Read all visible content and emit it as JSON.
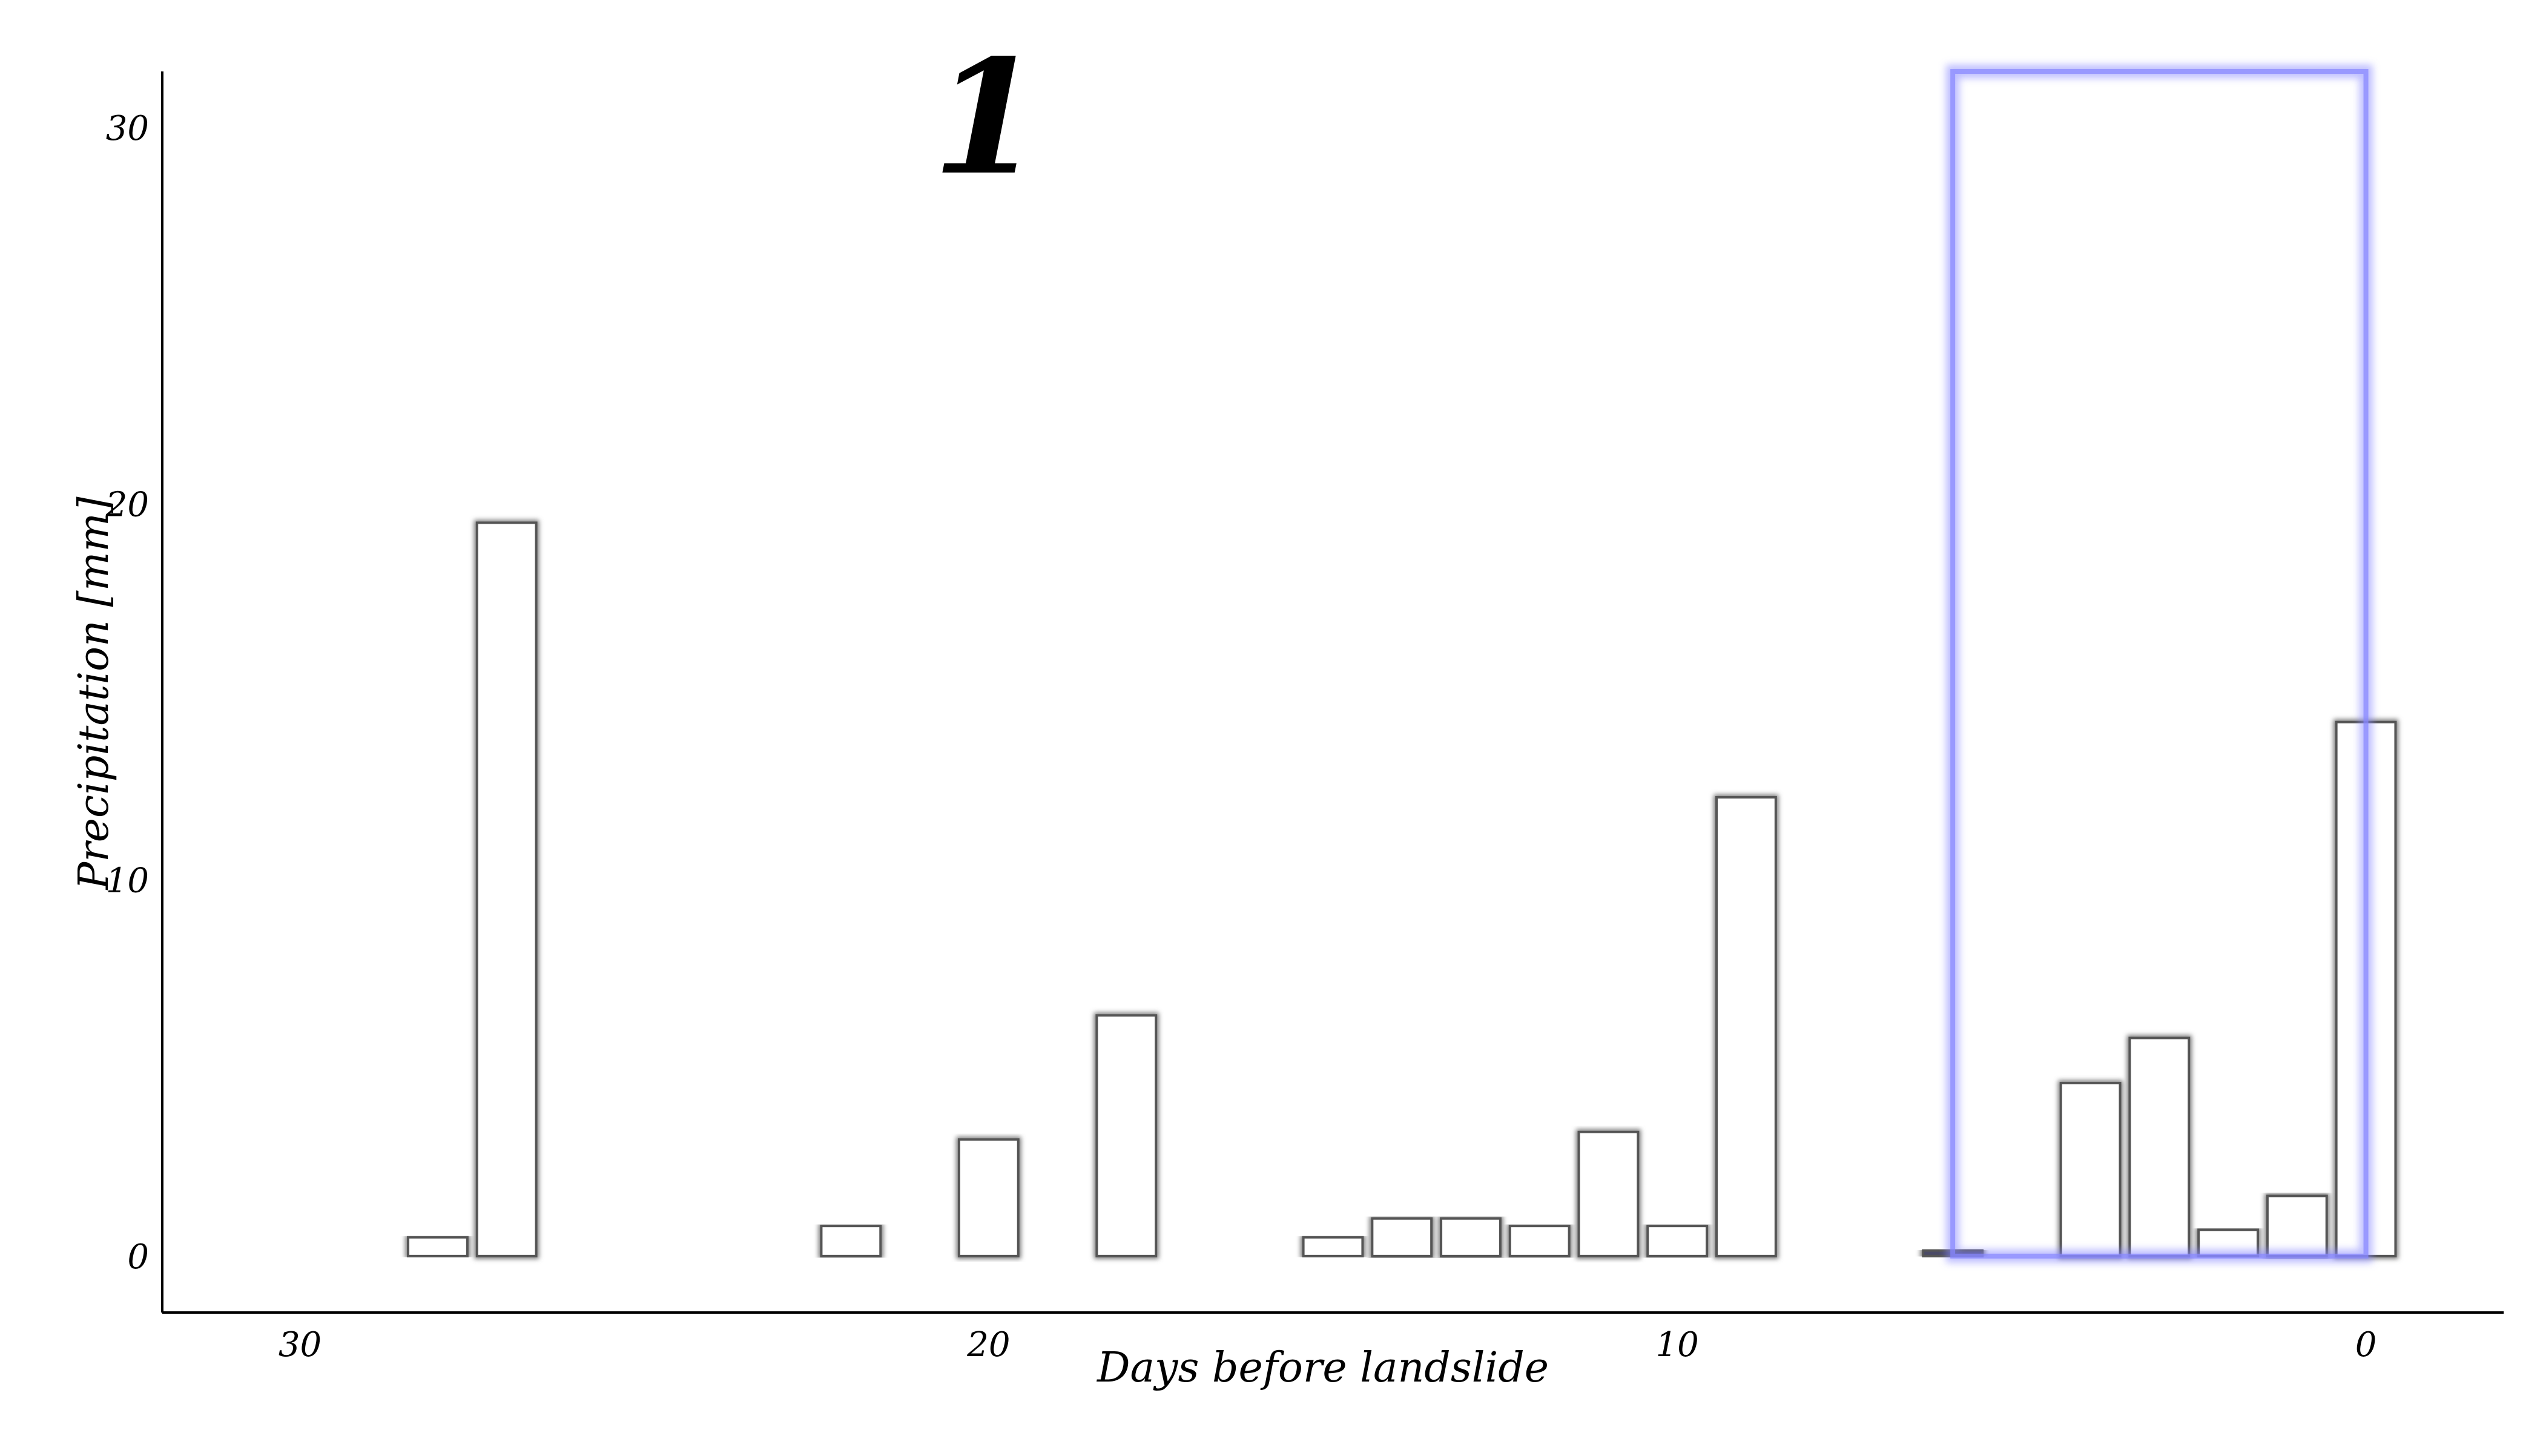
{
  "chart_data": {
    "type": "bar",
    "panel_label": "1",
    "xlabel": "Days before landslide",
    "ylabel": "Precipitation [mm]",
    "x_reversed": true,
    "xlim": [
      32,
      -2
    ],
    "ylim": [
      -1.5,
      31.5
    ],
    "xticks": [
      30,
      20,
      10,
      0
    ],
    "yticks": [
      0,
      10,
      20,
      30
    ],
    "grid": false,
    "bars": [
      {
        "day": 28,
        "value": 0.5
      },
      {
        "day": 27,
        "value": 19.5
      },
      {
        "day": 22,
        "value": 0.8
      },
      {
        "day": 20,
        "value": 3.1
      },
      {
        "day": 18,
        "value": 6.4
      },
      {
        "day": 15,
        "value": 0.5
      },
      {
        "day": 14,
        "value": 1.0
      },
      {
        "day": 13,
        "value": 1.0
      },
      {
        "day": 12,
        "value": 0.8
      },
      {
        "day": 11,
        "value": 3.3
      },
      {
        "day": 10,
        "value": 0.8
      },
      {
        "day": 9,
        "value": 12.2
      },
      {
        "day": 6,
        "value": 0.15
      },
      {
        "day": 4,
        "value": 4.6
      },
      {
        "day": 3,
        "value": 5.8
      },
      {
        "day": 2,
        "value": 0.7
      },
      {
        "day": 1,
        "value": 1.6
      },
      {
        "day": 0,
        "value": 14.2
      }
    ],
    "highlight": {
      "x_start": 6,
      "x_end": 0,
      "y_top": 31.5
    },
    "colors": {
      "bar_fill": "#ffffff",
      "bar_edge": "#555555",
      "highlight_bar": "#4a4a66",
      "highlight_box": "#8888ff",
      "axis": "#000000"
    }
  }
}
